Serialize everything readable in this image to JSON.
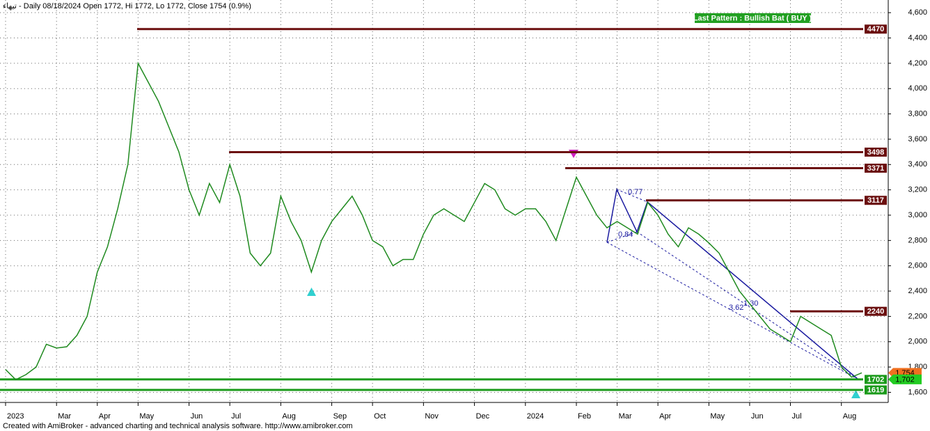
{
  "chart_data": {
    "type": "line",
    "title": "تيهاء - Daily 08/18/2024 Open 1772, Hi 1772, Lo 1772, Close 1754 (0.9%)",
    "pattern_label": "Last Pattern : Bullish Bat ( BUY )",
    "footer": "Created with AmiBroker - advanced charting and technical analysis software. http://www.amibroker.com",
    "categories": [
      "2023",
      null,
      null,
      null,
      null,
      "Mar",
      null,
      null,
      null,
      "Apr",
      null,
      null,
      null,
      "May",
      null,
      null,
      null,
      null,
      "Jun",
      null,
      null,
      null,
      "Jul",
      null,
      null,
      null,
      null,
      "Aug",
      null,
      null,
      null,
      null,
      "Sep",
      null,
      null,
      null,
      "Oct",
      null,
      null,
      null,
      null,
      "Nov",
      null,
      null,
      null,
      null,
      "Dec",
      null,
      null,
      null,
      null,
      "2024",
      null,
      null,
      null,
      null,
      "Feb",
      null,
      null,
      null,
      "Mar",
      null,
      null,
      null,
      "Apr",
      null,
      null,
      null,
      null,
      "May",
      null,
      null,
      null,
      "Jun",
      null,
      null,
      null,
      "Jul",
      null,
      null,
      null,
      null,
      "Aug",
      null,
      null
    ],
    "series": [
      {
        "name": "Close",
        "color": "#1f8a1f",
        "values": [
          1780,
          1700,
          1740,
          1800,
          1980,
          1950,
          1960,
          2050,
          2200,
          2550,
          2750,
          3050,
          3400,
          4200,
          4050,
          3900,
          3700,
          3500,
          3200,
          3000,
          3250,
          3100,
          3400,
          3150,
          2700,
          2600,
          2700,
          3150,
          2950,
          2800,
          2550,
          2800,
          2950,
          3050,
          3150,
          3000,
          2800,
          2750,
          2600,
          2650,
          2650,
          2850,
          3000,
          3050,
          3000,
          2950,
          3100,
          3250,
          3200,
          3050,
          3000,
          3050,
          3050,
          2950,
          2800,
          3050,
          3300,
          3150,
          3000,
          2900,
          2950,
          2900,
          2850,
          3100,
          3000,
          2850,
          2750,
          2900,
          2850,
          2780,
          2700,
          2550,
          2400,
          2300,
          2200,
          2100,
          2050,
          2000,
          2200,
          2150,
          2100,
          2050,
          1800,
          1720,
          1754
        ]
      }
    ],
    "levels": [
      {
        "value": 4470,
        "color": "#6b0f0f"
      },
      {
        "value": 3498,
        "color": "#6b0f0f"
      },
      {
        "value": 3371,
        "color": "#6b0f0f"
      },
      {
        "value": 3117,
        "color": "#6b0f0f"
      },
      {
        "value": 2240,
        "color": "#6b0f0f"
      },
      {
        "value": 1702,
        "color": "#1a9a1a"
      },
      {
        "value": 1619,
        "color": "#1a9a1a"
      }
    ],
    "last_price": {
      "value": 1754,
      "label": "1,754",
      "color": "#f07020"
    },
    "support_price": {
      "value": 1702,
      "label": "1,702",
      "color": "#22cc22"
    },
    "ratios": [
      "0.77",
      "0.84",
      "3.62",
      "1.30"
    ],
    "ylim": [
      1520,
      4700
    ],
    "yticks": [
      {
        "value": 1600,
        "label": "1,600"
      },
      {
        "value": 1800,
        "label": "1,800"
      },
      {
        "value": 2000,
        "label": "2,000"
      },
      {
        "value": 2200,
        "label": "2,200"
      },
      {
        "value": 2400,
        "label": "2,400"
      },
      {
        "value": 2600,
        "label": "2,600"
      },
      {
        "value": 2800,
        "label": "2,800"
      },
      {
        "value": 3000,
        "label": "3,000"
      },
      {
        "value": 3200,
        "label": "3,200"
      },
      {
        "value": 3400,
        "label": "3,400"
      },
      {
        "value": 3600,
        "label": "3,600"
      },
      {
        "value": 3800,
        "label": "3,800"
      },
      {
        "value": 4000,
        "label": "4,000"
      },
      {
        "value": 4200,
        "label": "4,200"
      },
      {
        "value": 4400,
        "label": "4,400"
      },
      {
        "value": 4600,
        "label": "4,600"
      }
    ],
    "grid": true
  }
}
